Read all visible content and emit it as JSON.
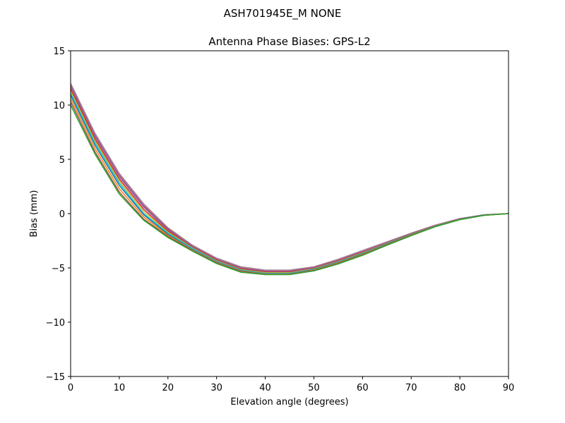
{
  "suptitle": "ASH701945E_M    NONE",
  "chart_data": {
    "type": "line",
    "title": "Antenna Phase Biases: GPS-L2",
    "xlabel": "Elevation angle (degrees)",
    "ylabel": "Bias (mm)",
    "xlim": [
      0,
      90
    ],
    "ylim": [
      -15,
      15
    ],
    "xticks": [
      0,
      10,
      20,
      30,
      40,
      50,
      60,
      70,
      80,
      90
    ],
    "yticks": [
      -15,
      -10,
      -5,
      0,
      5,
      10,
      15
    ],
    "xtick_labels": [
      "0",
      "10",
      "20",
      "30",
      "40",
      "50",
      "60",
      "70",
      "80",
      "90"
    ],
    "ytick_labels": [
      "−15",
      "−10",
      "−5",
      "0",
      "5",
      "10",
      "15"
    ],
    "grid": false,
    "x": [
      0,
      5,
      10,
      15,
      20,
      25,
      30,
      35,
      40,
      45,
      50,
      55,
      60,
      65,
      70,
      75,
      80,
      85,
      90
    ],
    "series": [
      {
        "color": "#7f7f7f",
        "values": [
          12.0,
          7.4,
          3.7,
          0.9,
          -1.3,
          -2.9,
          -4.1,
          -4.9,
          -5.2,
          -5.2,
          -4.9,
          -4.2,
          -3.4,
          -2.6,
          -1.8,
          -1.05,
          -0.45,
          -0.1,
          0.0
        ]
      },
      {
        "color": "#e377c2",
        "values": [
          11.9,
          7.3,
          3.6,
          0.8,
          -1.35,
          -2.95,
          -4.15,
          -4.95,
          -5.25,
          -5.25,
          -4.93,
          -4.25,
          -3.45,
          -2.63,
          -1.82,
          -1.07,
          -0.47,
          -0.11,
          0.0
        ]
      },
      {
        "color": "#8c564b",
        "values": [
          11.8,
          7.2,
          3.5,
          0.7,
          -1.4,
          -3.0,
          -4.2,
          -5.0,
          -5.3,
          -5.3,
          -4.96,
          -4.3,
          -3.5,
          -2.66,
          -1.84,
          -1.09,
          -0.48,
          -0.12,
          0.0
        ]
      },
      {
        "color": "#9467bd",
        "values": [
          11.7,
          7.1,
          3.4,
          0.6,
          -1.5,
          -3.05,
          -4.25,
          -5.05,
          -5.35,
          -5.35,
          -5.0,
          -4.34,
          -3.54,
          -2.69,
          -1.86,
          -1.1,
          -0.49,
          -0.12,
          0.0
        ]
      },
      {
        "color": "#d62728",
        "values": [
          11.5,
          6.9,
          3.2,
          0.4,
          -1.6,
          -3.1,
          -4.3,
          -5.1,
          -5.4,
          -5.4,
          -5.04,
          -4.38,
          -3.58,
          -2.72,
          -1.88,
          -1.12,
          -0.5,
          -0.13,
          0.0
        ]
      },
      {
        "color": "#bcbd22",
        "values": [
          11.3,
          6.7,
          3.0,
          0.2,
          -1.7,
          -3.15,
          -4.35,
          -5.15,
          -5.45,
          -5.45,
          -5.08,
          -4.42,
          -3.62,
          -2.75,
          -1.9,
          -1.13,
          -0.51,
          -0.13,
          0.0
        ]
      },
      {
        "color": "#17becf",
        "values": [
          11.1,
          6.5,
          2.8,
          0.0,
          -1.8,
          -3.2,
          -4.4,
          -5.2,
          -5.5,
          -5.5,
          -5.12,
          -4.46,
          -3.66,
          -2.78,
          -1.92,
          -1.15,
          -0.52,
          -0.14,
          0.0
        ]
      },
      {
        "color": "#1f77b4",
        "values": [
          10.9,
          6.3,
          2.6,
          -0.1,
          -1.9,
          -3.3,
          -4.45,
          -5.25,
          -5.55,
          -5.55,
          -5.16,
          -4.5,
          -3.7,
          -2.81,
          -1.94,
          -1.16,
          -0.53,
          -0.14,
          0.0
        ]
      },
      {
        "color": "#ff7f0e",
        "values": [
          10.6,
          6.0,
          2.3,
          -0.3,
          -2.0,
          -3.35,
          -4.5,
          -5.3,
          -5.58,
          -5.58,
          -5.2,
          -4.55,
          -3.75,
          -2.85,
          -1.97,
          -1.18,
          -0.54,
          -0.15,
          0.0
        ]
      },
      {
        "color": "#8c564b",
        "values": [
          10.3,
          5.7,
          2.0,
          -0.5,
          -2.1,
          -3.4,
          -4.55,
          -5.35,
          -5.6,
          -5.6,
          -5.24,
          -4.6,
          -3.8,
          -2.88,
          -2.0,
          -1.19,
          -0.55,
          -0.15,
          0.0
        ]
      },
      {
        "color": "#2ca02c",
        "values": [
          10.0,
          5.5,
          1.8,
          -0.6,
          -2.2,
          -3.45,
          -4.6,
          -5.4,
          -5.62,
          -5.62,
          -5.28,
          -4.64,
          -3.84,
          -2.92,
          -2.03,
          -1.2,
          -0.56,
          -0.16,
          0.0
        ]
      }
    ]
  }
}
